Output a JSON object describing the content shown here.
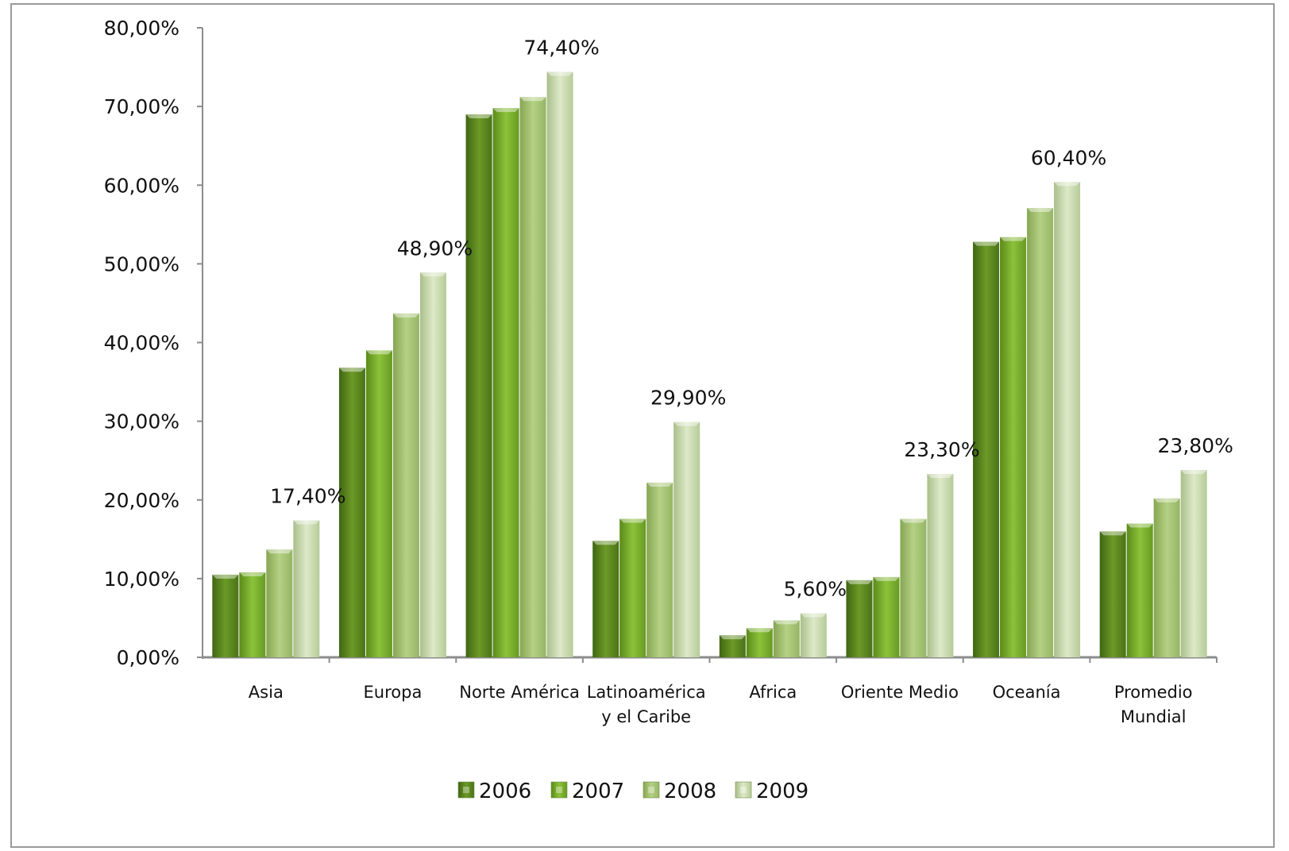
{
  "chart_data": {
    "type": "bar",
    "categories": [
      "Asia",
      "Europa",
      "Norte América",
      "Latinoamérica y el Caribe",
      "Africa",
      "Oriente Medio",
      "Oceanía",
      "Promedio Mundial"
    ],
    "category_lines": [
      [
        "Asia"
      ],
      [
        "Europa"
      ],
      [
        "Norte América"
      ],
      [
        "Latinoamérica",
        "y el Caribe"
      ],
      [
        "Africa"
      ],
      [
        "Oriente Medio"
      ],
      [
        "Oceanía"
      ],
      [
        "Promedio",
        "Mundial"
      ]
    ],
    "series": [
      {
        "name": "2006",
        "values": [
          10.5,
          36.8,
          69.0,
          14.8,
          2.8,
          9.8,
          52.8,
          16.0
        ],
        "color": "#5d8a1e"
      },
      {
        "name": "2007",
        "values": [
          10.8,
          39.0,
          69.8,
          17.6,
          3.7,
          10.2,
          53.4,
          17.0
        ],
        "color": "#76aa2a"
      },
      {
        "name": "2008",
        "values": [
          13.7,
          43.7,
          71.2,
          22.2,
          4.7,
          17.6,
          57.1,
          20.2
        ],
        "color": "#a4c36e"
      },
      {
        "name": "2009",
        "values": [
          17.4,
          48.9,
          74.4,
          29.9,
          5.6,
          23.3,
          60.4,
          23.8
        ],
        "color": "#c9dcab"
      }
    ],
    "data_labels": [
      "17,40%",
      "48,90%",
      "74,40%",
      "29,90%",
      "5,60%",
      "23,30%",
      "60,40%",
      "23,80%"
    ],
    "y_ticks": [
      "0,00%",
      "10,00%",
      "20,00%",
      "30,00%",
      "40,00%",
      "50,00%",
      "60,00%",
      "70,00%",
      "80,00%"
    ],
    "ylim": [
      0,
      80
    ],
    "legend_position": "bottom",
    "grid": false
  }
}
